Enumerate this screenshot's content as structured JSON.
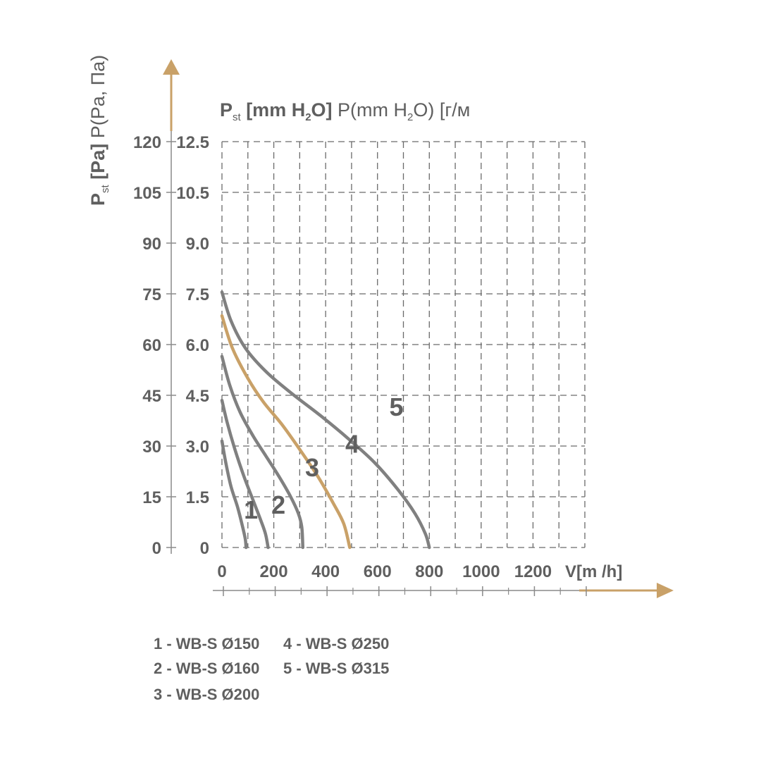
{
  "chart_data": {
    "type": "line",
    "title": "",
    "ylabel": {
      "main": "P",
      "sub": "st",
      "rest": " [Pa]",
      "extra": " P(Pa, Па)"
    },
    "ylabel2": {
      "main": "P",
      "sub": "st",
      "rest": " [mm H",
      "sub2": "2",
      "rest2": "O]",
      "extra": " P(mm H",
      "sub3": "2",
      "extra2": "O) [г/м"
    },
    "xlabel": "V[m /h]",
    "x_ticks": [
      "0",
      "200",
      "400",
      "600",
      "800",
      "1000",
      "1200"
    ],
    "x_tick_values": [
      0,
      200,
      400,
      600,
      800,
      1000,
      1200
    ],
    "y_ticks_pa": [
      "0",
      "15",
      "30",
      "45",
      "60",
      "75",
      "90",
      "105",
      "120"
    ],
    "y_ticks_mm": [
      "0",
      "1.5",
      "3.0",
      "4.5",
      "6.0",
      "7.5",
      "9.0",
      "10.5",
      "12.5"
    ],
    "y_tick_values": [
      0,
      15,
      30,
      45,
      60,
      75,
      90,
      105,
      120
    ],
    "xlim": [
      0,
      1400
    ],
    "ylim": [
      0,
      120
    ],
    "grid": true,
    "series": [
      {
        "name": "1 - WB-S Ø150",
        "label": "1",
        "color": "#808080",
        "points": [
          [
            0,
            31.5
          ],
          [
            15,
            25
          ],
          [
            35,
            18
          ],
          [
            60,
            12
          ],
          [
            80,
            6
          ],
          [
            90,
            2.5
          ],
          [
            93,
            0
          ]
        ]
      },
      {
        "name": "2 - WB-S Ø160",
        "label": "2",
        "color": "#808080",
        "points": [
          [
            0,
            43.5
          ],
          [
            20,
            37
          ],
          [
            50,
            29
          ],
          [
            85,
            21
          ],
          [
            120,
            14
          ],
          [
            150,
            8
          ],
          [
            168,
            4
          ],
          [
            178,
            0
          ]
        ]
      },
      {
        "name": "3 - WB-S Ø200",
        "label": "3",
        "color": "#808080",
        "points": [
          [
            0,
            56.5
          ],
          [
            30,
            48
          ],
          [
            70,
            40
          ],
          [
            120,
            33
          ],
          [
            170,
            27
          ],
          [
            220,
            21
          ],
          [
            265,
            15
          ],
          [
            295,
            10
          ],
          [
            308,
            6
          ],
          [
            312,
            0
          ]
        ]
      },
      {
        "name": "4 - WB-S Ø250",
        "label": "4",
        "color": "#c9a168",
        "points": [
          [
            0,
            68.5
          ],
          [
            40,
            59
          ],
          [
            100,
            50
          ],
          [
            160,
            43
          ],
          [
            230,
            36.5
          ],
          [
            300,
            29
          ],
          [
            370,
            21
          ],
          [
            430,
            13
          ],
          [
            470,
            7
          ],
          [
            493,
            0
          ]
        ]
      },
      {
        "name": "5 - WB-S Ø315",
        "label": "5",
        "color": "#808080",
        "points": [
          [
            0,
            75.5
          ],
          [
            35,
            67
          ],
          [
            90,
            59
          ],
          [
            170,
            52
          ],
          [
            270,
            45.5
          ],
          [
            380,
            39
          ],
          [
            490,
            32
          ],
          [
            590,
            25
          ],
          [
            680,
            17
          ],
          [
            745,
            10
          ],
          [
            785,
            4
          ],
          [
            800,
            0
          ]
        ]
      }
    ],
    "curve_labels": [
      {
        "label": "1",
        "x": 112,
        "y": 8.5
      },
      {
        "label": "2",
        "x": 218,
        "y": 10
      },
      {
        "label": "3",
        "x": 348,
        "y": 21
      },
      {
        "label": "4",
        "x": 503,
        "y": 28
      },
      {
        "label": "5",
        "x": 673,
        "y": 39
      }
    ],
    "legend": [
      "1 - WB-S Ø150",
      "2 - WB-S Ø160",
      "3 - WB-S Ø200",
      "4 - WB-S Ø250",
      "5 - WB-S Ø315"
    ],
    "legend_placement": "bottom-left",
    "arrow_color": "#c9a168"
  }
}
